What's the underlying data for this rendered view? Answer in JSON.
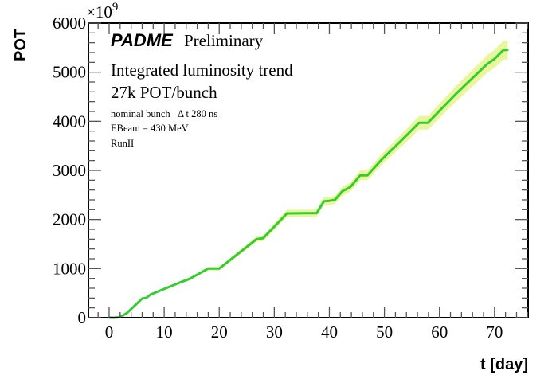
{
  "chart_data": {
    "type": "line",
    "title": "",
    "xlabel": "t [day]",
    "ylabel": "POT",
    "y_multiplier": "×10",
    "y_multiplier_exp": "9",
    "xlim": [
      -3.76,
      76.1
    ],
    "ylim": [
      0,
      6000
    ],
    "x_ticks": [
      0,
      10,
      20,
      30,
      40,
      50,
      60,
      70
    ],
    "x_tick_labels": [
      "0",
      "10",
      "20",
      "30",
      "40",
      "50",
      "60",
      "70"
    ],
    "y_ticks": [
      0,
      1000,
      2000,
      3000,
      4000,
      5000,
      6000
    ],
    "y_tick_labels": [
      "0",
      "1000",
      "2000",
      "3000",
      "4000",
      "5000",
      "6000"
    ],
    "grid": false,
    "series": [
      {
        "name": "Integrated luminosity trend",
        "color": "#33cc33",
        "band_color": "#e6f58a",
        "band_fraction": 0.035,
        "x": [
          0,
          1,
          2,
          3.3,
          6,
          6.7,
          7.5,
          12.7,
          14.6,
          18,
          20,
          26.8,
          28,
          32.3,
          37.7,
          39,
          40,
          41,
          42.4,
          43.8,
          45.6,
          46.9,
          49.6,
          54,
          56.3,
          57.9,
          63,
          68.7,
          70,
          71.6,
          72.4
        ],
        "values": [
          0,
          0,
          10,
          100,
          390,
          400,
          470,
          710,
          790,
          1000,
          1000,
          1600,
          1620,
          2125,
          2130,
          2370,
          2380,
          2400,
          2580,
          2660,
          2900,
          2900,
          3230,
          3710,
          3970,
          3970,
          4560,
          5170,
          5270,
          5450,
          5450
        ]
      }
    ],
    "annotations": {
      "brand": "PADME",
      "status": "Preliminary",
      "line1": "Integrated luminosity trend",
      "line2": "27k POT/bunch",
      "line3": "nominal bunch   Δ t 280 ns",
      "line4": "EBeam = 430 MeV",
      "line5": "RunII"
    }
  }
}
